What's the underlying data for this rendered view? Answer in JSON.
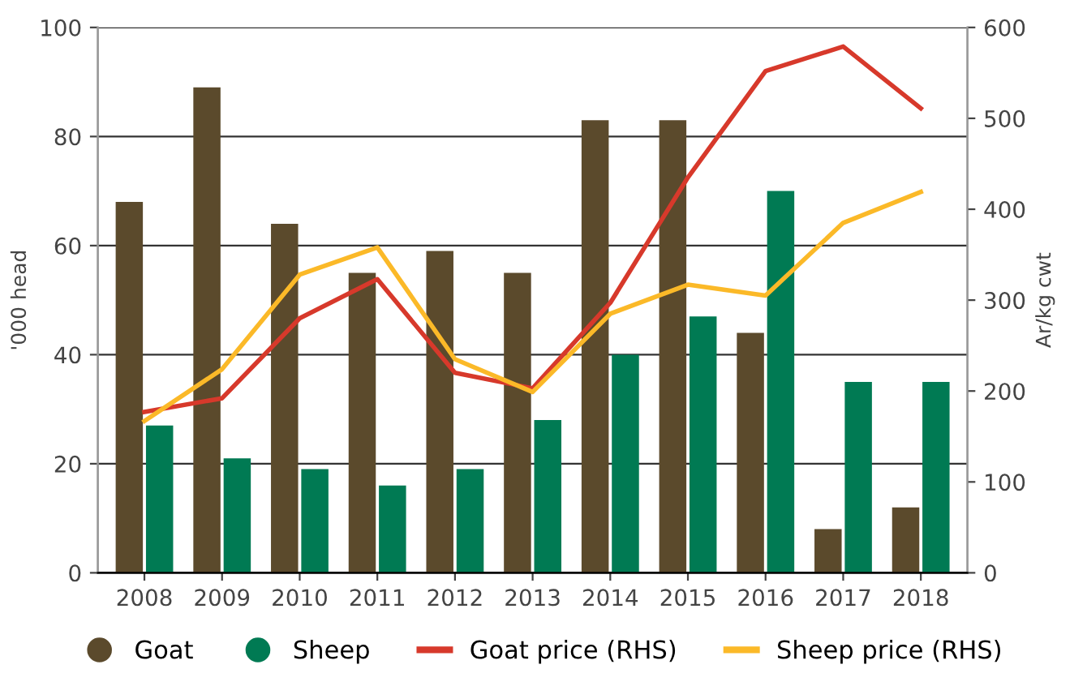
{
  "chart_data": {
    "type": "bar",
    "ylabel": "'000 head",
    "y2label": "Ar/kg cwt",
    "categories": [
      "2008",
      "2009",
      "2010",
      "2011",
      "2012",
      "2013",
      "2014",
      "2015",
      "2016",
      "2017",
      "2018"
    ],
    "series": [
      {
        "name": "Goat",
        "color": "#5b4a2c",
        "values": [
          68,
          89,
          64,
          55,
          59,
          55,
          83,
          83,
          44,
          8,
          12
        ]
      },
      {
        "name": "Sheep",
        "color": "#007a53",
        "values": [
          27,
          21,
          19,
          16,
          19,
          28,
          40,
          47,
          70,
          35,
          35
        ]
      },
      {
        "name": "Goat price (RHS)",
        "type": "line",
        "axis": "y2",
        "color": "#d7392b",
        "values": [
          177,
          192,
          280,
          323,
          220,
          203,
          297,
          435,
          552,
          579,
          511
        ]
      },
      {
        "name": "Sheep price (RHS)",
        "type": "line",
        "axis": "y2",
        "color": "#fbb928",
        "values": [
          167,
          224,
          328,
          358,
          235,
          199,
          285,
          317,
          305,
          385,
          419
        ]
      }
    ],
    "ylim": [
      0,
      100
    ],
    "yticks": [
      0,
      20,
      40,
      60,
      80,
      100
    ],
    "y2lim": [
      0,
      600
    ],
    "y2ticks": [
      0,
      100,
      200,
      300,
      400,
      500,
      600
    ],
    "grid": "y",
    "legend": "bottom"
  }
}
